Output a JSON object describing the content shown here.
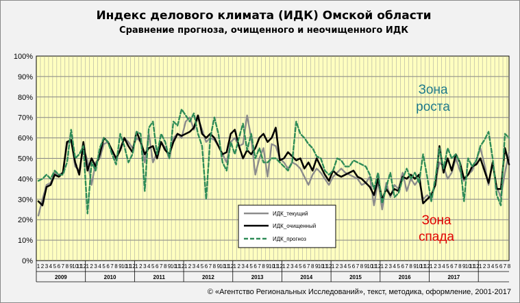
{
  "chart_data": {
    "type": "line",
    "title": "Индекс делового климата (ИДК) Омской области",
    "subtitle": "Сравнение прогноза, очищенного и неочищенного ИДК",
    "ylim": [
      0,
      100
    ],
    "y_ticks": [
      "0%",
      "10%",
      "20%",
      "30%",
      "40%",
      "50%",
      "60%",
      "70%",
      "80%",
      "90%",
      "100%"
    ],
    "month_labels": [
      "1",
      "2",
      "3",
      "4",
      "5",
      "6",
      "7",
      "8",
      "9",
      "10",
      "11",
      "12"
    ],
    "years": [
      "2009",
      "2010",
      "2011",
      "2012",
      "2013",
      "2014",
      "2015",
      "2016",
      "2017"
    ],
    "grid": true,
    "zones": {
      "up": [
        "Зона",
        "роста"
      ],
      "down": [
        "Зона",
        "спада"
      ]
    },
    "legend_position": "center-bottom",
    "series": [
      {
        "name": "ИДК_текущий",
        "color": "#8c8c8c",
        "style": "solid",
        "values": [
          22,
          30,
          37,
          38,
          43,
          42,
          43,
          57,
          59,
          46,
          44,
          55,
          49,
          37,
          48,
          50,
          57,
          58,
          54,
          49,
          55,
          60,
          58,
          55,
          60,
          58,
          48,
          62,
          48,
          53,
          58,
          55,
          50,
          60,
          62,
          60,
          68,
          70,
          64,
          70,
          64,
          58,
          60,
          59,
          56,
          52,
          48,
          58,
          60,
          56,
          57,
          71,
          60,
          42,
          50,
          55,
          41,
          57,
          56,
          50,
          48,
          45,
          48,
          47,
          45,
          41,
          37,
          42,
          45,
          43,
          40,
          37,
          41,
          43,
          45,
          43,
          42,
          41,
          40,
          37,
          38,
          41,
          27,
          39,
          25,
          38,
          31,
          37,
          35,
          43,
          34,
          40,
          37,
          40,
          30,
          32,
          30,
          38,
          48,
          46,
          40,
          43,
          50,
          44,
          39,
          42,
          44,
          49,
          55,
          47,
          37,
          48,
          36,
          31,
          43,
          53
        ]
      },
      {
        "name": "ИДК_очищенный",
        "color": "#000000",
        "style": "solid",
        "values": [
          29,
          27,
          36,
          37,
          42,
          41,
          43,
          58,
          59,
          48,
          42,
          58,
          44,
          50,
          46,
          52,
          60,
          58,
          54,
          50,
          54,
          60,
          56,
          53,
          63,
          58,
          52,
          55,
          56,
          50,
          58,
          54,
          52,
          58,
          62,
          61,
          62,
          63,
          65,
          71,
          62,
          60,
          62,
          60,
          56,
          52,
          53,
          62,
          64,
          56,
          50,
          54,
          52,
          55,
          60,
          62,
          58,
          60,
          65,
          49,
          50,
          53,
          51,
          49,
          50,
          45,
          48,
          44,
          50,
          46,
          42,
          39,
          44,
          42,
          41,
          42,
          43,
          44,
          41,
          40,
          38,
          36,
          32,
          40,
          30,
          35,
          32,
          35,
          34,
          41,
          40,
          42,
          40,
          42,
          28,
          30,
          32,
          37,
          56,
          43,
          50,
          44,
          52,
          48,
          40,
          42,
          46,
          47,
          50,
          44,
          38,
          48,
          35,
          35,
          55,
          47
        ]
      },
      {
        "name": "ИДК_прогноз",
        "color": "#2e8b57",
        "style": "dashed",
        "values": [
          39,
          40,
          42,
          40,
          44,
          42,
          42,
          48,
          64,
          50,
          52,
          56,
          23,
          48,
          44,
          55,
          60,
          58,
          52,
          47,
          62,
          56,
          48,
          52,
          63,
          62,
          34,
          65,
          68,
          52,
          62,
          58,
          50,
          68,
          66,
          74,
          71,
          68,
          72,
          62,
          56,
          30,
          60,
          70,
          62,
          48,
          44,
          58,
          52,
          60,
          67,
          54,
          62,
          50,
          55,
          48,
          48,
          50,
          50,
          48,
          46,
          44,
          48,
          68,
          62,
          60,
          57,
          55,
          51,
          50,
          44,
          42,
          44,
          50,
          49,
          46,
          46,
          49,
          48,
          47,
          46,
          42,
          35,
          43,
          28,
          36,
          43,
          31,
          33,
          40,
          45,
          40,
          43,
          38,
          52,
          41,
          29,
          40,
          55,
          45,
          55,
          50,
          52,
          48,
          29,
          50,
          46,
          49,
          56,
          59,
          63,
          50,
          32,
          27,
          62,
          60
        ]
      }
    ],
    "footer": "© «Агентство Региональных Исследований», текст, методика, оформление, 2001-2017"
  }
}
